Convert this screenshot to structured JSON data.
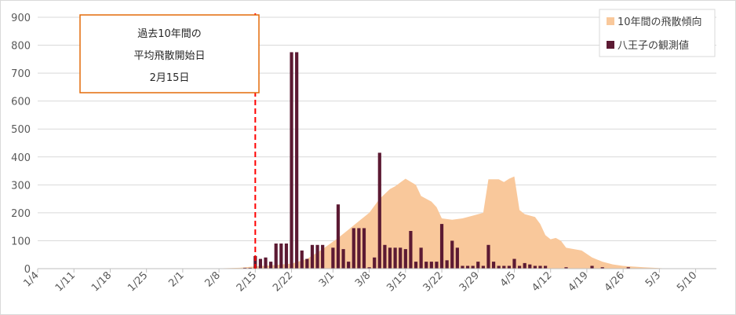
{
  "chart_data": {
    "type": "bar",
    "title": "",
    "xlabel": "",
    "ylabel": "",
    "ylim": [
      0,
      900
    ],
    "yticks": [
      0,
      100,
      200,
      300,
      400,
      500,
      600,
      700,
      800,
      900
    ],
    "x_start": "1/4",
    "x_end": "5/14",
    "xticks": [
      "1/4",
      "1/11",
      "1/18",
      "1/25",
      "2/1",
      "2/8",
      "2/15",
      "2/22",
      "3/1",
      "3/8",
      "3/15",
      "3/22",
      "3/29",
      "4/5",
      "4/12",
      "4/19",
      "4/26",
      "5/3",
      "5/10"
    ],
    "grid": true,
    "legend_position": "top-right",
    "colors": {
      "area": "#f9c89b",
      "bar": "#5c1a33",
      "ref_line": "#ff0000",
      "annotation_border": "#e46c0a"
    },
    "series": [
      {
        "name": "10年間の飛散傾向",
        "kind": "area",
        "points": [
          [
            "2/8",
            1
          ],
          [
            "2/12",
            3
          ],
          [
            "2/15",
            8
          ],
          [
            "2/18",
            12
          ],
          [
            "2/22",
            18
          ],
          [
            "2/25",
            35
          ],
          [
            "2/28",
            70
          ],
          [
            "3/2",
            110
          ],
          [
            "3/4",
            140
          ],
          [
            "3/6",
            170
          ],
          [
            "3/8",
            200
          ],
          [
            "3/10",
            250
          ],
          [
            "3/12",
            285
          ],
          [
            "3/13",
            295
          ],
          [
            "3/15",
            322
          ],
          [
            "3/17",
            300
          ],
          [
            "3/18",
            260
          ],
          [
            "3/20",
            240
          ],
          [
            "3/21",
            220
          ],
          [
            "3/22",
            180
          ],
          [
            "3/24",
            175
          ],
          [
            "3/26",
            180
          ],
          [
            "3/28",
            190
          ],
          [
            "3/30",
            200
          ],
          [
            "3/31",
            320
          ],
          [
            "4/2",
            320
          ],
          [
            "4/3",
            310
          ],
          [
            "4/4",
            322
          ],
          [
            "4/5",
            330
          ],
          [
            "4/6",
            210
          ],
          [
            "4/7",
            195
          ],
          [
            "4/9",
            185
          ],
          [
            "4/10",
            160
          ],
          [
            "4/11",
            120
          ],
          [
            "4/12",
            105
          ],
          [
            "4/13",
            110
          ],
          [
            "4/14",
            100
          ],
          [
            "4/15",
            75
          ],
          [
            "4/18",
            65
          ],
          [
            "4/20",
            40
          ],
          [
            "4/22",
            25
          ],
          [
            "4/24",
            15
          ],
          [
            "4/26",
            10
          ],
          [
            "4/30",
            5
          ],
          [
            "5/3",
            2
          ],
          [
            "5/5",
            0
          ]
        ]
      },
      {
        "name": "八王子の観測値",
        "kind": "bar",
        "points": [
          [
            "2/13",
            3
          ],
          [
            "2/14",
            3
          ],
          [
            "2/15",
            45
          ],
          [
            "2/16",
            35
          ],
          [
            "2/17",
            40
          ],
          [
            "2/18",
            25
          ],
          [
            "2/19",
            90
          ],
          [
            "2/20",
            90
          ],
          [
            "2/21",
            90
          ],
          [
            "2/22",
            775
          ],
          [
            "2/23",
            775
          ],
          [
            "2/24",
            65
          ],
          [
            "2/25",
            35
          ],
          [
            "2/26",
            85
          ],
          [
            "2/27",
            85
          ],
          [
            "2/28",
            85
          ],
          [
            "3/1",
            75
          ],
          [
            "3/2",
            230
          ],
          [
            "3/3",
            70
          ],
          [
            "3/4",
            25
          ],
          [
            "3/5",
            145
          ],
          [
            "3/6",
            145
          ],
          [
            "3/7",
            145
          ],
          [
            "3/8",
            5
          ],
          [
            "3/9",
            40
          ],
          [
            "3/10",
            415
          ],
          [
            "3/11",
            85
          ],
          [
            "3/12",
            75
          ],
          [
            "3/13",
            75
          ],
          [
            "3/14",
            75
          ],
          [
            "3/15",
            70
          ],
          [
            "3/16",
            135
          ],
          [
            "3/17",
            25
          ],
          [
            "3/18",
            75
          ],
          [
            "3/19",
            25
          ],
          [
            "3/20",
            25
          ],
          [
            "3/21",
            25
          ],
          [
            "3/22",
            160
          ],
          [
            "3/23",
            30
          ],
          [
            "3/24",
            100
          ],
          [
            "3/25",
            75
          ],
          [
            "3/26",
            10
          ],
          [
            "3/27",
            10
          ],
          [
            "3/28",
            10
          ],
          [
            "3/29",
            25
          ],
          [
            "3/30",
            10
          ],
          [
            "3/31",
            85
          ],
          [
            "4/1",
            25
          ],
          [
            "4/2",
            10
          ],
          [
            "4/3",
            10
          ],
          [
            "4/4",
            10
          ],
          [
            "4/5",
            35
          ],
          [
            "4/6",
            10
          ],
          [
            "4/7",
            20
          ],
          [
            "4/8",
            15
          ],
          [
            "4/9",
            10
          ],
          [
            "4/10",
            10
          ],
          [
            "4/11",
            10
          ],
          [
            "4/15",
            5
          ],
          [
            "4/20",
            10
          ],
          [
            "4/22",
            5
          ],
          [
            "4/27",
            5
          ]
        ]
      }
    ],
    "reference_line": {
      "x": "2/15",
      "style": "dashed"
    },
    "annotation": {
      "lines": [
        "過去10年間の",
        "平均飛散開始日",
        "2月15日"
      ]
    }
  }
}
